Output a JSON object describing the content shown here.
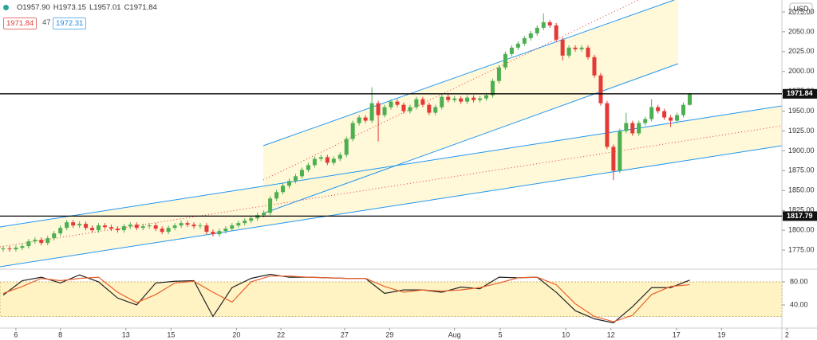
{
  "header": {
    "ohlc": [
      "O1957.90",
      "H1973.15",
      "L1957.01",
      "C1971.84"
    ],
    "badges": [
      "1971.84",
      "47",
      "1972.31"
    ],
    "currency": "USD"
  },
  "chart_data": [
    {
      "type": "candlestick",
      "up_color": "#4caf50",
      "down_color": "#e53935",
      "xlim": [
        -0.5,
        122.5
      ],
      "xticks": [
        {
          "value": 2.0,
          "label": "6"
        },
        {
          "value": 9.0,
          "label": "8"
        },
        {
          "value": 19.3,
          "label": "13"
        },
        {
          "value": 26.4,
          "label": "15"
        },
        {
          "value": 36.7,
          "label": "20"
        },
        {
          "value": 43.7,
          "label": "22"
        },
        {
          "value": 53.7,
          "label": "27"
        },
        {
          "value": 60.8,
          "label": "29"
        },
        {
          "value": 71.0,
          "label": "Aug"
        },
        {
          "value": 78.2,
          "label": "5"
        },
        {
          "value": 88.5,
          "label": "10"
        },
        {
          "value": 95.6,
          "label": "12"
        },
        {
          "value": 105.9,
          "label": "17"
        },
        {
          "value": 113.0,
          "label": "19"
        },
        {
          "value": 123.3,
          "label": "2"
        }
      ],
      "ylim": [
        1751,
        2090
      ],
      "yticks": [
        {
          "value": 1775,
          "label": "1775.00"
        },
        {
          "value": 1800,
          "label": "1800.00"
        },
        {
          "value": 1825,
          "label": "1825.00"
        },
        {
          "value": 1850,
          "label": "1850.00"
        },
        {
          "value": 1875,
          "label": "1875.00"
        },
        {
          "value": 1900,
          "label": "1900.00"
        },
        {
          "value": 1925,
          "label": "1925.00"
        },
        {
          "value": 1950,
          "label": "1950.00"
        },
        {
          "value": 1975,
          "label": "1975.00"
        },
        {
          "value": 2000,
          "label": "2000.00"
        },
        {
          "value": 2025,
          "label": "2025.00"
        },
        {
          "value": 2050,
          "label": "2050.00"
        },
        {
          "value": 2075,
          "label": "2075.00"
        }
      ],
      "hlines": [
        1971.84,
        1817.79
      ],
      "open": [
        1776,
        1777,
        1776,
        1778,
        1780,
        1786,
        1788,
        1784,
        1790,
        1796,
        1803,
        1810,
        1806,
        1808,
        1803,
        1800,
        1806,
        1804,
        1802,
        1800,
        1805,
        1807,
        1803,
        1805,
        1806,
        1802,
        1798,
        1803,
        1806,
        1809,
        1807,
        1805,
        1806,
        1798,
        1795,
        1799,
        1802,
        1806,
        1809,
        1812,
        1815,
        1819,
        1822,
        1840,
        1848,
        1856,
        1862,
        1868,
        1876,
        1882,
        1890,
        1892,
        1885,
        1890,
        1895,
        1915,
        1935,
        1942,
        1938,
        1960,
        1945,
        1955,
        1962,
        1958,
        1950,
        1955,
        1965,
        1958,
        1948,
        1955,
        1968,
        1964,
        1966,
        1962,
        1967,
        1964,
        1966,
        1970,
        1988,
        2005,
        2022,
        2030,
        2035,
        2042,
        2048,
        2055,
        2062,
        2058,
        2040,
        2020,
        2030,
        2028,
        2030,
        2018,
        1995,
        1960,
        1905,
        1875,
        1925,
        1935,
        1922,
        1935,
        1940,
        1955,
        1950,
        1942,
        1938,
        1945,
        1957.9
      ],
      "high": [
        1780,
        1780,
        1781,
        1783,
        1789,
        1791,
        1791,
        1793,
        1799,
        1806,
        1813,
        1813,
        1811,
        1811,
        1806,
        1809,
        1809,
        1807,
        1805,
        1808,
        1810,
        1810,
        1808,
        1809,
        1809,
        1805,
        1806,
        1809,
        1812,
        1812,
        1810,
        1809,
        1809,
        1801,
        1802,
        1805,
        1809,
        1812,
        1815,
        1818,
        1822,
        1825,
        1843,
        1851,
        1859,
        1865,
        1871,
        1879,
        1885,
        1893,
        1895,
        1895,
        1893,
        1898,
        1918,
        1938,
        1945,
        1945,
        1980,
        1963,
        1958,
        1965,
        1965,
        1961,
        1958,
        1968,
        1968,
        1961,
        1958,
        1971,
        1971,
        1969,
        1969,
        1970,
        1970,
        1969,
        1973,
        1991,
        2008,
        2025,
        2033,
        2038,
        2045,
        2051,
        2058,
        2073,
        2065,
        2061,
        2043,
        2033,
        2033,
        2033,
        2033,
        2021,
        1998,
        1963,
        1908,
        1928,
        1948,
        1938,
        1938,
        1943,
        1965,
        1958,
        1953,
        1945,
        1948,
        1961,
        1973.15
      ],
      "low": [
        1773,
        1773,
        1773,
        1775,
        1777,
        1783,
        1781,
        1781,
        1787,
        1793,
        1800,
        1803,
        1803,
        1800,
        1797,
        1797,
        1801,
        1799,
        1797,
        1797,
        1802,
        1800,
        1800,
        1802,
        1799,
        1795,
        1795,
        1800,
        1803,
        1804,
        1802,
        1802,
        1795,
        1792,
        1792,
        1796,
        1799,
        1803,
        1806,
        1809,
        1812,
        1816,
        1819,
        1837,
        1845,
        1853,
        1859,
        1865,
        1873,
        1879,
        1887,
        1882,
        1882,
        1887,
        1892,
        1912,
        1932,
        1935,
        1935,
        1912,
        1942,
        1952,
        1955,
        1947,
        1947,
        1952,
        1955,
        1945,
        1945,
        1952,
        1961,
        1961,
        1959,
        1959,
        1961,
        1961,
        1963,
        1967,
        1985,
        2002,
        2019,
        2027,
        2032,
        2039,
        2045,
        2052,
        2055,
        2037,
        2014,
        2017,
        2025,
        2025,
        2015,
        1992,
        1957,
        1902,
        1863,
        1872,
        1922,
        1919,
        1919,
        1932,
        1937,
        1947,
        1939,
        1930,
        1935,
        1942,
        1957.01
      ],
      "close": [
        1777,
        1776,
        1778,
        1780,
        1786,
        1788,
        1784,
        1790,
        1796,
        1803,
        1810,
        1806,
        1808,
        1803,
        1800,
        1806,
        1804,
        1802,
        1800,
        1805,
        1807,
        1803,
        1805,
        1806,
        1802,
        1798,
        1803,
        1806,
        1809,
        1807,
        1805,
        1806,
        1798,
        1795,
        1799,
        1802,
        1806,
        1809,
        1812,
        1815,
        1819,
        1822,
        1840,
        1848,
        1856,
        1862,
        1868,
        1876,
        1882,
        1890,
        1892,
        1885,
        1890,
        1895,
        1915,
        1935,
        1942,
        1938,
        1960,
        1945,
        1955,
        1962,
        1958,
        1950,
        1955,
        1965,
        1958,
        1948,
        1955,
        1968,
        1964,
        1966,
        1962,
        1967,
        1964,
        1966,
        1970,
        1988,
        2005,
        2022,
        2030,
        2035,
        2042,
        2048,
        2055,
        2062,
        2058,
        2040,
        2020,
        2030,
        2028,
        2030,
        2018,
        1995,
        1960,
        1905,
        1875,
        1925,
        1935,
        1922,
        1935,
        1940,
        1955,
        1950,
        1942,
        1938,
        1945,
        1957.9,
        1971.84
      ]
    },
    {
      "type": "line",
      "x": [
        0,
        3,
        6,
        9,
        12,
        15,
        18,
        21,
        24,
        27,
        30,
        33,
        36,
        39,
        42,
        45,
        48,
        51,
        54,
        57,
        60,
        63,
        66,
        69,
        72,
        75,
        78,
        81,
        84,
        87,
        90,
        93,
        96,
        99,
        102,
        105,
        108
      ],
      "ylim": [
        0,
        102
      ],
      "band": [
        20,
        80
      ],
      "yticks": [
        {
          "value": 40,
          "label": "40.00"
        },
        {
          "value": 80,
          "label": "80.00"
        }
      ],
      "series": [
        {
          "color": "#222222",
          "values": [
            57,
            82,
            88,
            78,
            92,
            80,
            52,
            40,
            78,
            81,
            82,
            20,
            70,
            86,
            93,
            88,
            88,
            87,
            86,
            86,
            60,
            66,
            66,
            62,
            71,
            68,
            88,
            87,
            88,
            62,
            30,
            16,
            9,
            37,
            70,
            70,
            83
          ]
        },
        {
          "color": "#e8602c",
          "values": [
            60,
            72,
            86,
            82,
            86,
            88,
            62,
            44,
            58,
            78,
            81,
            62,
            45,
            80,
            90,
            90,
            88,
            87,
            86,
            86,
            72,
            62,
            66,
            64,
            66,
            70,
            78,
            87,
            88,
            75,
            42,
            20,
            11,
            22,
            58,
            72,
            75
          ]
        }
      ]
    }
  ]
}
